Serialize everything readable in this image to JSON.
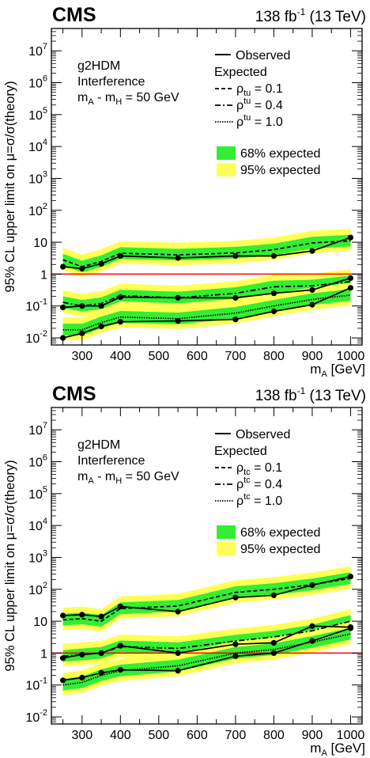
{
  "chart_data": [
    {
      "type": "line",
      "experiment": "CMS",
      "lumi_main": "138 fb",
      "lumi_exp": "-1",
      "lumi_tail": " (13 TeV)",
      "ylabel": "95% CL upper limit on μ=σ/σ(theory)",
      "xlabel_main": "m",
      "xlabel_sub": "A",
      "xlabel_unit": " [GeV]",
      "model_lines": [
        "g2HDM",
        "Interference"
      ],
      "mass_line": {
        "m": "m",
        "a": "A",
        "mid": " - m",
        "h": "H",
        "tail": " = 50 GeV"
      },
      "legend": {
        "observed": "Observed",
        "expected": "Expected",
        "rho": "ρ",
        "rho_sup": "tu",
        "rho_sub": "tu",
        "rho_values": [
          " = 0.1",
          " = 0.4",
          " = 1.0"
        ],
        "band68": "68% expected",
        "band95": "95% expected"
      },
      "x_ticks": [
        "300",
        "400",
        "500",
        "600",
        "700",
        "800",
        "900",
        "1000"
      ],
      "y_ticks": [
        {
          "base": "10",
          "exp": "-2"
        },
        {
          "base": "10",
          "exp": "-1"
        },
        {
          "base": "1",
          "exp": ""
        },
        {
          "base": "10",
          "exp": ""
        },
        {
          "base": "10",
          "exp": "2"
        },
        {
          "base": "10",
          "exp": "3"
        },
        {
          "base": "10",
          "exp": "4"
        },
        {
          "base": "10",
          "exp": "5"
        },
        {
          "base": "10",
          "exp": "6"
        },
        {
          "base": "10",
          "exp": "7"
        }
      ],
      "xlim": [
        220,
        1030
      ],
      "ylim": [
        0.006,
        50000000
      ],
      "y_scale": "log",
      "reference_line": 1,
      "colors": {
        "band68": "#33ee33",
        "band95": "#ffff55",
        "reference": "#ff0000"
      },
      "x": [
        250,
        300,
        350,
        400,
        550,
        700,
        800,
        900,
        1000
      ],
      "series": [
        {
          "rho": 0.1,
          "observed": [
            1.7,
            1.5,
            2.1,
            3.7,
            3.2,
            3.7,
            3.7,
            5.3,
            14.0
          ],
          "expected": [
            2.8,
            1.7,
            2.5,
            4.5,
            4.0,
            4.6,
            5.8,
            9.5,
            11.0
          ]
        },
        {
          "rho": 0.4,
          "observed": [
            0.09,
            0.1,
            0.1,
            0.19,
            0.18,
            0.18,
            0.25,
            0.32,
            0.75
          ],
          "expected": [
            0.13,
            0.1,
            0.12,
            0.21,
            0.18,
            0.25,
            0.4,
            0.43,
            0.58
          ]
        },
        {
          "rho": 1.0,
          "observed": [
            0.01,
            0.014,
            0.023,
            0.032,
            0.034,
            0.038,
            0.068,
            0.11,
            0.37
          ],
          "expected": [
            0.018,
            0.018,
            0.03,
            0.045,
            0.04,
            0.06,
            0.1,
            0.16,
            0.22
          ]
        }
      ]
    },
    {
      "type": "line",
      "experiment": "CMS",
      "lumi_main": "138 fb",
      "lumi_exp": "-1",
      "lumi_tail": " (13 TeV)",
      "ylabel": "95% CL upper limit on μ=σ/σ(theory)",
      "xlabel_main": "m",
      "xlabel_sub": "A",
      "xlabel_unit": " [GeV]",
      "model_lines": [
        "g2HDM",
        "Interference"
      ],
      "mass_line": {
        "m": "m",
        "a": "A",
        "mid": " - m",
        "h": "H",
        "tail": " = 50 GeV"
      },
      "legend": {
        "observed": "Observed",
        "expected": "Expected",
        "rho": "ρ",
        "rho_sup": "tc",
        "rho_sub": "tc",
        "rho_values": [
          " = 0.1",
          " = 0.4",
          " = 1.0"
        ],
        "band68": "68% expected",
        "band95": "95% expected"
      },
      "x_ticks": [
        "300",
        "400",
        "500",
        "600",
        "700",
        "800",
        "900",
        "1000"
      ],
      "y_ticks": [
        {
          "base": "10",
          "exp": "-2"
        },
        {
          "base": "10",
          "exp": "-1"
        },
        {
          "base": "1",
          "exp": ""
        },
        {
          "base": "10",
          "exp": ""
        },
        {
          "base": "10",
          "exp": "2"
        },
        {
          "base": "10",
          "exp": "3"
        },
        {
          "base": "10",
          "exp": "4"
        },
        {
          "base": "10",
          "exp": "5"
        },
        {
          "base": "10",
          "exp": "6"
        },
        {
          "base": "10",
          "exp": "7"
        }
      ],
      "xlim": [
        220,
        1030
      ],
      "ylim": [
        0.006,
        50000000
      ],
      "y_scale": "log",
      "reference_line": 1,
      "colors": {
        "band68": "#33ee33",
        "band95": "#ffff55",
        "reference": "#ff0000"
      },
      "x": [
        250,
        300,
        350,
        400,
        550,
        700,
        800,
        900,
        1000
      ],
      "series": [
        {
          "rho": 0.1,
          "observed": [
            15,
            16,
            14,
            29,
            20,
            55,
            65,
            135,
            250
          ],
          "expected": [
            11,
            12,
            10,
            25,
            30,
            80,
            100,
            140,
            220
          ]
        },
        {
          "rho": 0.4,
          "observed": [
            0.7,
            0.9,
            1.0,
            1.7,
            1.0,
            1.9,
            2.1,
            7.0,
            6.5
          ],
          "expected": [
            0.8,
            0.9,
            1.0,
            1.6,
            1.4,
            2.4,
            3.2,
            5.0,
            10.0
          ]
        },
        {
          "rho": 1.0,
          "observed": [
            0.14,
            0.17,
            0.24,
            0.3,
            0.28,
            0.8,
            1.0,
            2.4,
            6.0
          ],
          "expected": [
            0.1,
            0.12,
            0.2,
            0.28,
            0.4,
            1.0,
            1.3,
            2.2,
            4.0
          ]
        }
      ]
    }
  ]
}
